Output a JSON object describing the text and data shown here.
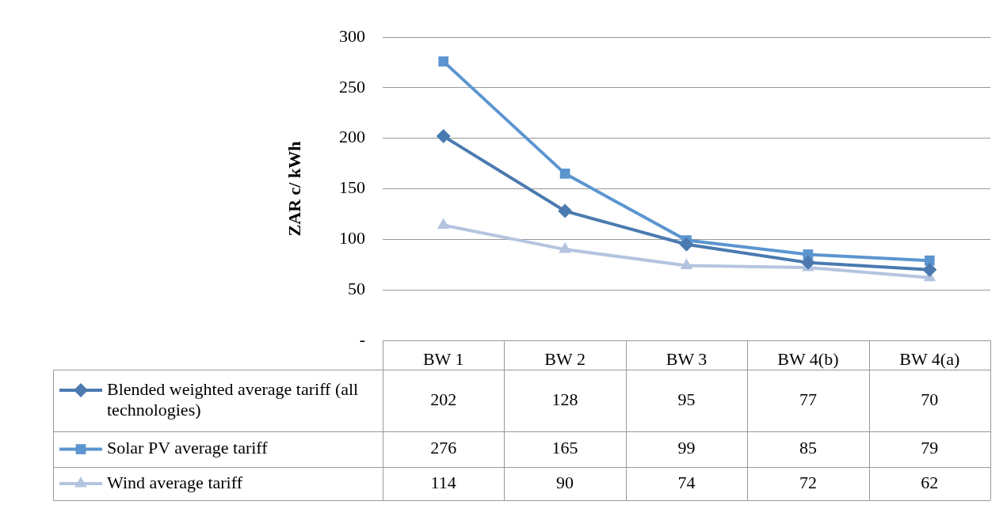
{
  "chart_data": {
    "type": "line",
    "ylabel": "ZAR c/ kWh",
    "categories": [
      "BW 1",
      "BW 2",
      "BW 3",
      "BW 4(b)",
      "BW 4(a)"
    ],
    "series": [
      {
        "name": "Blended weighted average tariff (all technologies)",
        "color": "#4a7ab0",
        "marker": "diamond",
        "values": [
          202,
          128,
          95,
          77,
          70
        ]
      },
      {
        "name": "Solar PV average tariff",
        "color": "#5b95d0",
        "marker": "square",
        "values": [
          276,
          165,
          99,
          85,
          79
        ]
      },
      {
        "name": "Wind average tariff",
        "color": "#b4c4e0",
        "marker": "triangle",
        "values": [
          114,
          90,
          74,
          72,
          62
        ]
      }
    ],
    "ylim": [
      0,
      300
    ],
    "yticks": [
      {
        "value": 0,
        "label": "-"
      },
      50,
      100,
      150,
      200,
      250,
      300
    ],
    "grid": "y",
    "legend": "bottom left",
    "data_labels": true,
    "line_style": "solid"
  }
}
